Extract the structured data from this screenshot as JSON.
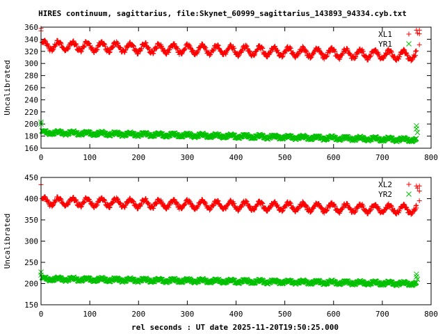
{
  "title": "HIRES continuum, sagittarius, file:Skynet_60999_sagittarius_143893_94334.cyb.txt",
  "xlabel": "rel seconds : UT date 2025-11-20T19:50:25.000",
  "colors": {
    "red": "#ff0000",
    "green": "#00c000",
    "axis": "#000000"
  },
  "chart_data": [
    {
      "type": "scatter",
      "ylabel": "Uncalibrated",
      "xlim": [
        0,
        800
      ],
      "ylim": [
        160,
        360
      ],
      "xticks": [
        0,
        100,
        200,
        300,
        400,
        500,
        600,
        700,
        800
      ],
      "yticks": [
        160,
        180,
        200,
        220,
        240,
        260,
        280,
        300,
        320,
        340,
        360
      ],
      "legend_position": "top-right",
      "series": [
        {
          "name": "XL1",
          "marker": "plus",
          "color": "#ff0000",
          "mean_start": 330,
          "mean_end": 313,
          "amplitude": 7,
          "period": 29.5,
          "t_range": [
            2,
            770
          ],
          "outliers": [
            [
              0,
              358
            ],
            [
              0,
              354
            ],
            [
              770,
              355
            ],
            [
              772,
              350
            ],
            [
              768,
              320
            ]
          ],
          "legend_sample": [
            [
              776,
              355
            ],
            [
              776,
              349
            ],
            [
              776,
              331
            ]
          ]
        },
        {
          "name": "YR1",
          "marker": "cross",
          "color": "#00c000",
          "mean_start": 186,
          "mean_end": 174,
          "amplitude": 2.5,
          "period": 29.5,
          "t_range": [
            2,
            770
          ],
          "outliers": [
            [
              0,
              203
            ],
            [
              0,
              200
            ],
            [
              770,
              197
            ],
            [
              770,
              192
            ],
            [
              772,
              186
            ]
          ],
          "legend_sample": []
        }
      ]
    },
    {
      "type": "scatter",
      "ylabel": "Uncalibrated",
      "xlim": [
        0,
        800
      ],
      "ylim": [
        150,
        450
      ],
      "xticks": [
        0,
        100,
        200,
        300,
        400,
        500,
        600,
        700,
        800
      ],
      "yticks": [
        150,
        200,
        250,
        300,
        350,
        400,
        450
      ],
      "legend_position": "top-right",
      "series": [
        {
          "name": "XL2",
          "marker": "plus",
          "color": "#ff0000",
          "mean_start": 394,
          "mean_end": 374,
          "amplitude": 9,
          "period": 29.5,
          "t_range": [
            2,
            770
          ],
          "outliers": [
            [
              0,
              433
            ],
            [
              770,
              430
            ],
            [
              772,
              425
            ],
            [
              770,
              378
            ]
          ],
          "legend_sample": [
            [
              776,
              430
            ],
            [
              776,
              418
            ],
            [
              776,
              395
            ]
          ]
        },
        {
          "name": "YR2",
          "marker": "cross",
          "color": "#00c000",
          "mean_start": 211,
          "mean_end": 200,
          "amplitude": 3.5,
          "period": 29.5,
          "t_range": [
            2,
            770
          ],
          "outliers": [
            [
              0,
              227
            ],
            [
              0,
              220
            ],
            [
              770,
              222
            ],
            [
              770,
              216
            ],
            [
              772,
              210
            ]
          ],
          "legend_sample": []
        }
      ]
    }
  ]
}
